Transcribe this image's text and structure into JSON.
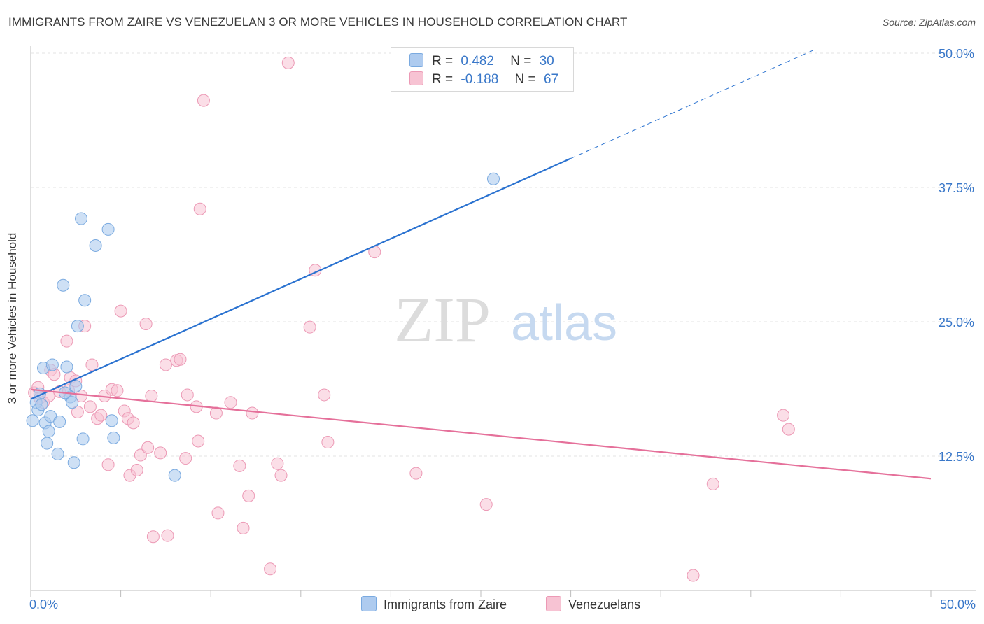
{
  "header": {
    "title": "IMMIGRANTS FROM ZAIRE VS VENEZUELAN 3 OR MORE VEHICLES IN HOUSEHOLD CORRELATION CHART",
    "source": "Source: ZipAtlas.com"
  },
  "legend": {
    "zaire": {
      "r_label": "R =",
      "r_value": "0.482",
      "n_label": "N =",
      "n_value": "30"
    },
    "venezuelan": {
      "r_label": "R =",
      "r_value": "-0.188",
      "n_label": "N =",
      "n_value": "67"
    }
  },
  "bottom_legend": {
    "zaire": "Immigrants from Zaire",
    "venezuelan": "Venezuelans"
  },
  "watermark": {
    "zip": "ZIP",
    "atlas": "atlas"
  },
  "colors": {
    "zaire_fill": "#aecbef",
    "zaire_stroke": "#7aaae0",
    "zaire_line": "#2a72d0",
    "venezuelan_fill": "#f7c3d3",
    "venezuelan_stroke": "#ec99b5",
    "venezuelan_line": "#e5709a",
    "tick_label": "#3a78c9",
    "grid": "#e3e3e3"
  },
  "chart_data": {
    "type": "scatter",
    "title": "IMMIGRANTS FROM ZAIRE VS VENEZUELAN 3 OR MORE VEHICLES IN HOUSEHOLD CORRELATION CHART",
    "xlabel": "",
    "ylabel": "3 or more Vehicles in Household",
    "xlim": [
      0,
      50
    ],
    "ylim": [
      0,
      50
    ],
    "x_tick_labels": [
      "0.0%",
      "50.0%"
    ],
    "y_ticks": [
      12.5,
      25.0,
      37.5,
      50.0
    ],
    "y_tick_labels": [
      "12.5%",
      "25.0%",
      "37.5%",
      "50.0%"
    ],
    "grid": true,
    "series": [
      {
        "name": "Immigrants from Zaire",
        "r": 0.482,
        "n": 30,
        "trend": {
          "x0": 0,
          "y0": 17.8,
          "x1": 30,
          "y1": 40.2,
          "dash_x1": 43.5,
          "dash_y1": 50.3
        },
        "points": [
          [
            0.1,
            15.8
          ],
          [
            0.3,
            17.5
          ],
          [
            0.4,
            16.8
          ],
          [
            0.5,
            18.3
          ],
          [
            0.6,
            17.3
          ],
          [
            0.7,
            20.7
          ],
          [
            0.8,
            15.6
          ],
          [
            0.9,
            13.7
          ],
          [
            1.0,
            14.8
          ],
          [
            1.1,
            16.2
          ],
          [
            1.2,
            21.0
          ],
          [
            1.5,
            12.7
          ],
          [
            1.6,
            15.7
          ],
          [
            1.8,
            28.4
          ],
          [
            2.0,
            20.8
          ],
          [
            2.2,
            18.0
          ],
          [
            2.3,
            17.5
          ],
          [
            2.4,
            11.9
          ],
          [
            2.5,
            19.0
          ],
          [
            2.6,
            24.6
          ],
          [
            2.8,
            34.6
          ],
          [
            2.9,
            14.1
          ],
          [
            3.0,
            27.0
          ],
          [
            3.6,
            32.1
          ],
          [
            4.3,
            33.6
          ],
          [
            4.5,
            15.8
          ],
          [
            4.6,
            14.2
          ],
          [
            8.0,
            10.7
          ],
          [
            25.7,
            38.3
          ],
          [
            1.9,
            18.4
          ]
        ]
      },
      {
        "name": "Venezuelans",
        "r": -0.188,
        "n": 67,
        "trend": {
          "x0": 0,
          "y0": 18.7,
          "x1": 50,
          "y1": 10.4
        },
        "points": [
          [
            0.2,
            18.4
          ],
          [
            0.4,
            18.9
          ],
          [
            0.5,
            17.9
          ],
          [
            0.7,
            17.5
          ],
          [
            1.0,
            18.1
          ],
          [
            1.1,
            20.5
          ],
          [
            1.3,
            20.1
          ],
          [
            1.6,
            18.5
          ],
          [
            2.0,
            23.2
          ],
          [
            2.2,
            19.8
          ],
          [
            2.5,
            19.5
          ],
          [
            2.6,
            16.6
          ],
          [
            2.8,
            18.1
          ],
          [
            3.0,
            24.6
          ],
          [
            3.3,
            17.1
          ],
          [
            3.4,
            21.0
          ],
          [
            3.7,
            16.0
          ],
          [
            3.9,
            16.3
          ],
          [
            4.1,
            18.1
          ],
          [
            4.3,
            11.7
          ],
          [
            4.5,
            18.7
          ],
          [
            4.8,
            18.6
          ],
          [
            5.0,
            26.0
          ],
          [
            5.2,
            16.7
          ],
          [
            5.4,
            16.0
          ],
          [
            5.5,
            10.7
          ],
          [
            5.7,
            15.6
          ],
          [
            5.9,
            11.2
          ],
          [
            6.1,
            12.6
          ],
          [
            6.4,
            24.8
          ],
          [
            6.5,
            13.3
          ],
          [
            6.7,
            18.1
          ],
          [
            6.8,
            5.0
          ],
          [
            7.2,
            12.8
          ],
          [
            7.6,
            5.1
          ],
          [
            7.5,
            21.0
          ],
          [
            8.1,
            21.4
          ],
          [
            8.3,
            21.5
          ],
          [
            8.6,
            12.3
          ],
          [
            8.7,
            18.2
          ],
          [
            9.2,
            17.1
          ],
          [
            9.3,
            13.9
          ],
          [
            9.4,
            35.5
          ],
          [
            9.6,
            45.6
          ],
          [
            10.3,
            16.5
          ],
          [
            10.4,
            7.2
          ],
          [
            11.1,
            17.5
          ],
          [
            11.6,
            11.6
          ],
          [
            11.8,
            5.8
          ],
          [
            12.1,
            8.8
          ],
          [
            12.3,
            16.5
          ],
          [
            13.3,
            2.0
          ],
          [
            13.7,
            11.8
          ],
          [
            13.9,
            10.7
          ],
          [
            14.3,
            49.1
          ],
          [
            15.5,
            24.5
          ],
          [
            15.8,
            29.8
          ],
          [
            16.3,
            18.2
          ],
          [
            16.5,
            13.8
          ],
          [
            19.1,
            31.5
          ],
          [
            21.4,
            10.9
          ],
          [
            25.3,
            8.0
          ],
          [
            36.8,
            1.4
          ],
          [
            37.9,
            9.9
          ],
          [
            41.8,
            16.3
          ],
          [
            42.1,
            15.0
          ],
          [
            2.1,
            18.6
          ]
        ]
      }
    ]
  }
}
